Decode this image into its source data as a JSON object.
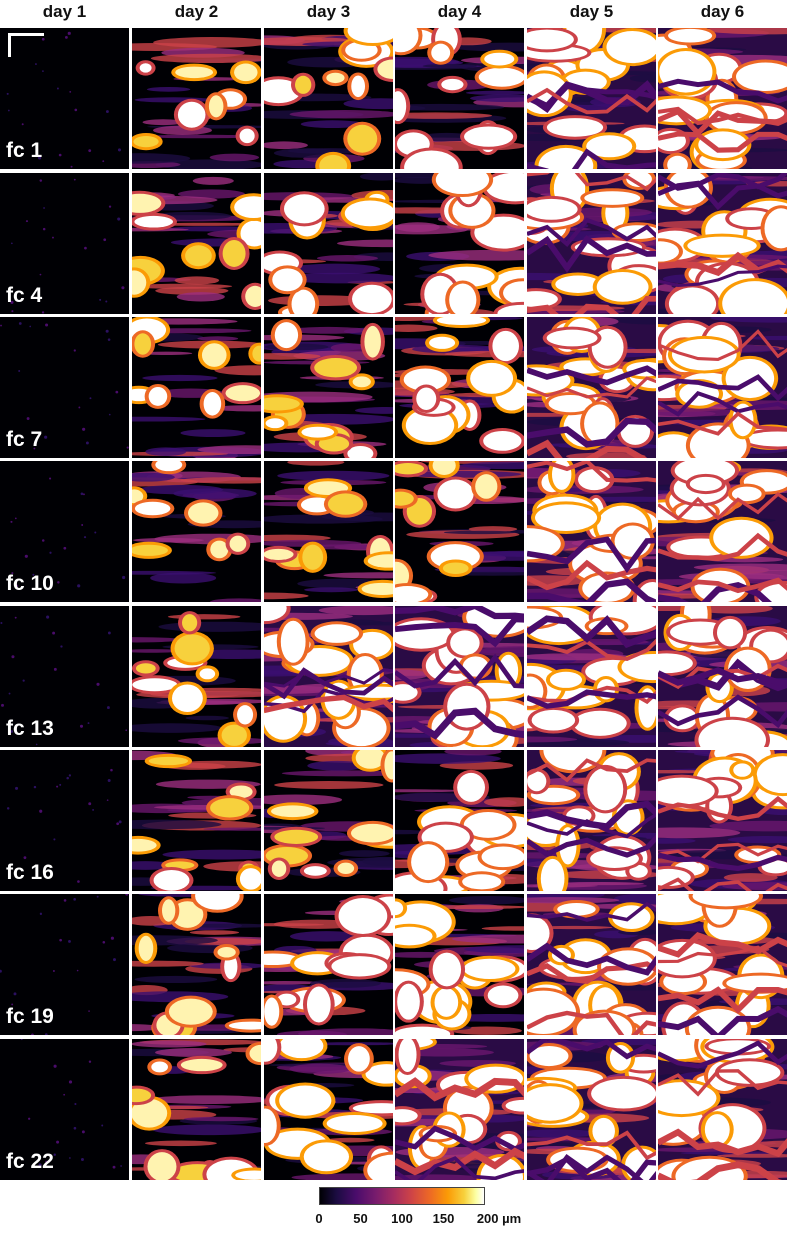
{
  "days": [
    "day 1",
    "day 2",
    "day 3",
    "day 4",
    "day 5",
    "day 6"
  ],
  "rows": [
    {
      "label": "fc 1",
      "level": [
        0.0,
        0.35,
        0.45,
        0.55,
        0.85,
        0.88
      ]
    },
    {
      "label": "fc 4",
      "level": [
        0.0,
        0.35,
        0.55,
        0.65,
        0.9,
        0.9
      ]
    },
    {
      "label": "fc 7",
      "level": [
        0.0,
        0.25,
        0.5,
        0.55,
        0.85,
        0.87
      ]
    },
    {
      "label": "fc 10",
      "level": [
        0.0,
        0.22,
        0.35,
        0.5,
        0.8,
        0.82
      ]
    },
    {
      "label": "fc 13",
      "level": [
        0.0,
        0.35,
        0.8,
        0.85,
        0.88,
        0.9
      ]
    },
    {
      "label": "fc 16",
      "level": [
        0.0,
        0.3,
        0.45,
        0.6,
        0.82,
        0.85
      ]
    },
    {
      "label": "fc 19",
      "level": [
        0.0,
        0.4,
        0.6,
        0.7,
        0.85,
        0.87
      ]
    },
    {
      "label": "fc 22",
      "level": [
        0.0,
        0.45,
        0.65,
        0.75,
        0.85,
        0.87
      ]
    }
  ],
  "colorbar": {
    "ticks": [
      "0",
      "50",
      "100",
      "150",
      "200 µm"
    ],
    "tick_values": [
      0,
      50,
      100,
      150,
      200
    ],
    "range": [
      0,
      200
    ],
    "colormap": "inferno",
    "colors": [
      "#000004",
      "#1b0c41",
      "#4a0c6b",
      "#781c6d",
      "#a52c60",
      "#cf4446",
      "#ed6925",
      "#fb9b06",
      "#f7d13d",
      "#fcffa4",
      "#ffffff"
    ]
  },
  "scale_bar_color": "#ffffff",
  "grid_line_color": "#ffffff"
}
